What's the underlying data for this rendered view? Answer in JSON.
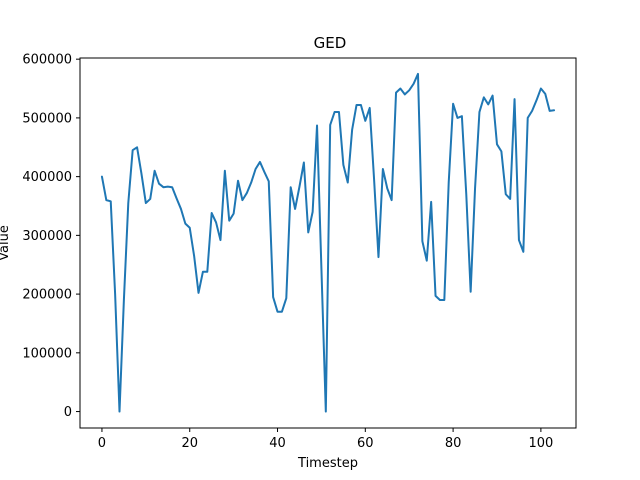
{
  "chart_data": {
    "type": "line",
    "title": "GED",
    "xlabel": "Timestep",
    "ylabel": "Value",
    "xlim": [
      -5,
      108
    ],
    "ylim": [
      -28000,
      602000
    ],
    "x_ticks": [
      0,
      20,
      40,
      60,
      80,
      100
    ],
    "y_ticks": [
      0,
      100000,
      200000,
      300000,
      400000,
      500000,
      600000
    ],
    "grid": false,
    "legend": false,
    "line_color": "#1f77b4",
    "series": [
      {
        "values": [
          400000,
          360000,
          358000,
          200000,
          0,
          190000,
          355000,
          445000,
          450000,
          405000,
          355000,
          362000,
          410000,
          388000,
          382000,
          383000,
          382000,
          363000,
          345000,
          320000,
          313000,
          265000,
          202000,
          238000,
          238000,
          338000,
          322000,
          292000,
          410000,
          325000,
          337000,
          393000,
          360000,
          372000,
          390000,
          413000,
          425000,
          408000,
          392000,
          195000,
          170000,
          170000,
          193000,
          382000,
          345000,
          383000,
          424000,
          305000,
          340000,
          487000,
          243000,
          0,
          488000,
          510000,
          510000,
          420000,
          390000,
          480000,
          522000,
          522000,
          495000,
          517000,
          395000,
          263000,
          413000,
          380000,
          360000,
          543000,
          550000,
          540000,
          547000,
          558000,
          575000,
          290000,
          257000,
          357000,
          197000,
          190000,
          190000,
          390000,
          524000,
          500000,
          503000,
          370000,
          204000,
          380000,
          510000,
          535000,
          523000,
          538000,
          455000,
          443000,
          370000,
          362000,
          532000,
          292000,
          272000,
          500000,
          512000,
          530000,
          550000,
          541000,
          512000,
          513000
        ]
      }
    ]
  }
}
